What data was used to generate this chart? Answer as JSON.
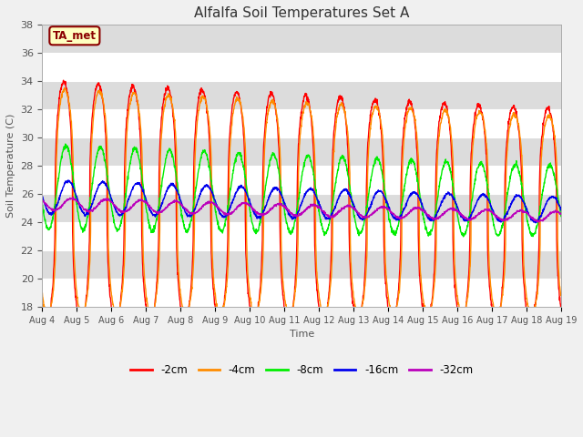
{
  "title": "Alfalfa Soil Temperatures Set A",
  "xlabel": "Time",
  "ylabel": "Soil Temperature (C)",
  "ylim": [
    18,
    38
  ],
  "yticks": [
    18,
    20,
    22,
    24,
    26,
    28,
    30,
    32,
    34,
    36,
    38
  ],
  "xtick_labels": [
    "Aug 4",
    "Aug 5",
    "Aug 6",
    "Aug 7",
    "Aug 8",
    "Aug 9",
    "Aug 10",
    "Aug 11",
    "Aug 12",
    "Aug 13",
    "Aug 14",
    "Aug 15",
    "Aug 16",
    "Aug 17",
    "Aug 18",
    "Aug 19"
  ],
  "annotation_text": "TA_met",
  "annotation_color": "#8B0000",
  "annotation_bg": "#FFFFC0",
  "series_colors": [
    "#FF0000",
    "#FF8C00",
    "#00EE00",
    "#0000EE",
    "#BB00BB"
  ],
  "series_labels": [
    "-2cm",
    "-4cm",
    "-8cm",
    "-16cm",
    "-32cm"
  ],
  "outer_bg": "#F0F0F0",
  "plot_bg": "#DCDCDC",
  "n_days": 15,
  "points_per_day": 144,
  "figsize": [
    6.4,
    4.8
  ],
  "dpi": 100
}
